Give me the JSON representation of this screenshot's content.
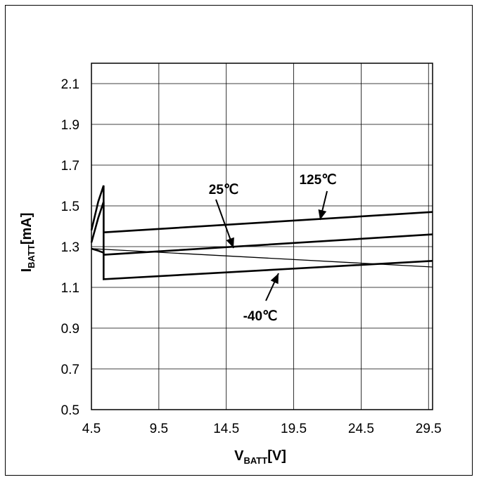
{
  "chart_data": {
    "type": "line",
    "xlabel_main": "V",
    "xlabel_sub": "BATT",
    "xlabel_unit": "[V]",
    "ylabel_main": "I",
    "ylabel_sub": "BATT",
    "ylabel_unit": "[mA]",
    "xlim": [
      4.5,
      29.8
    ],
    "ylim": [
      0.5,
      2.2
    ],
    "x_ticks": [
      4.5,
      9.5,
      14.5,
      19.5,
      24.5,
      29.5
    ],
    "x_tick_labels": [
      "4.5",
      "9.5",
      "14.5",
      "19.5",
      "24.5",
      "29.5"
    ],
    "y_ticks": [
      0.5,
      0.7,
      0.9,
      1.1,
      1.3,
      1.5,
      1.7,
      1.9,
      2.1
    ],
    "y_tick_labels": [
      "0.5",
      "0.7",
      "0.9",
      "1.1",
      "1.3",
      "1.5",
      "1.7",
      "1.9",
      "2.1"
    ],
    "grid": true,
    "series": [
      {
        "name": "125℃",
        "x": [
          4.5,
          5.0,
          5.4,
          5.4,
          29.8
        ],
        "y": [
          1.38,
          1.52,
          1.6,
          1.37,
          1.47
        ]
      },
      {
        "name": "25℃",
        "x": [
          4.5,
          5.0,
          5.4,
          5.4,
          29.8
        ],
        "y": [
          1.32,
          1.44,
          1.52,
          1.26,
          1.36
        ]
      },
      {
        "name": "-40℃",
        "x": [
          4.5,
          5.0,
          5.4,
          5.4,
          29.8
        ],
        "y": [
          1.29,
          1.28,
          1.27,
          1.14,
          1.23
        ]
      },
      {
        "name": "",
        "x": [
          4.5,
          29.8
        ],
        "y": [
          1.29,
          1.2
        ]
      }
    ],
    "annotations": [
      {
        "text": "125℃",
        "series": 0
      },
      {
        "text": "25℃",
        "series": 1
      },
      {
        "text": "-40℃",
        "series": 2
      }
    ]
  }
}
